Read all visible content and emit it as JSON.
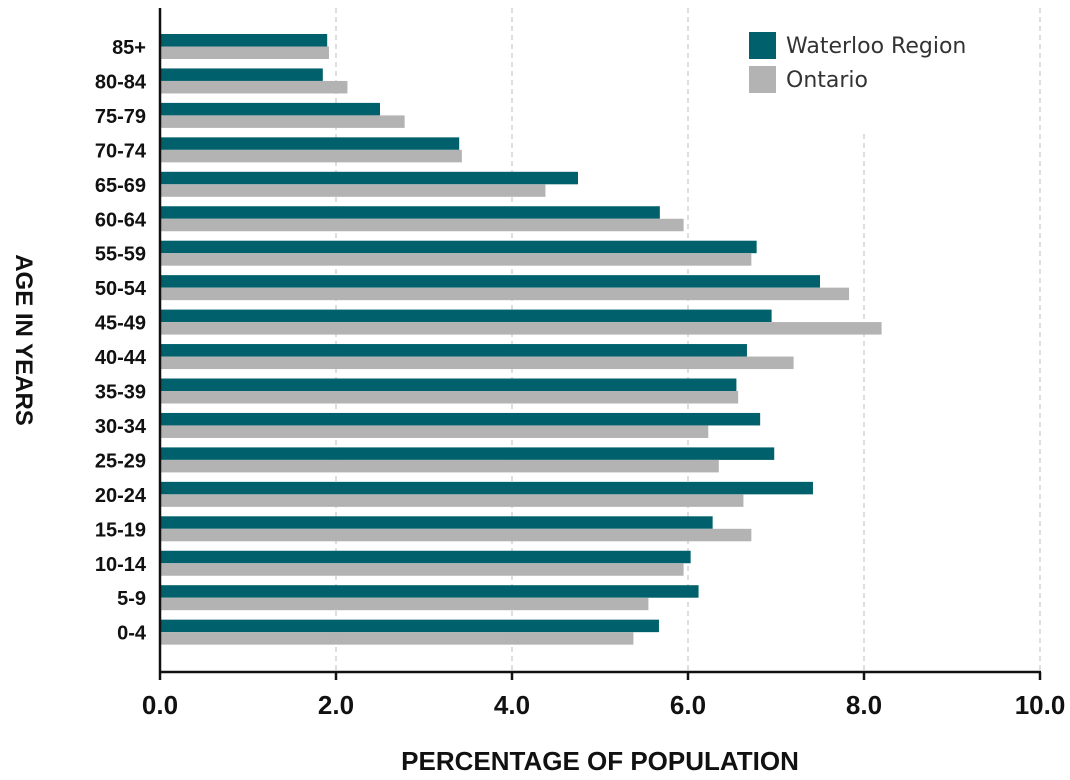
{
  "chart_data": {
    "type": "bar",
    "orientation": "horizontal",
    "xlabel": "PERCENTAGE OF POPULATION",
    "ylabel": "AGE IN YEARS",
    "xlim": [
      0,
      10
    ],
    "x_ticks": [
      "0.0",
      "2.0",
      "4.0",
      "6.0",
      "8.0",
      "10.0"
    ],
    "grid": "vertical dashed",
    "legend_position": "top-right",
    "categories": [
      "85+",
      "80-84",
      "75-79",
      "70-74",
      "65-69",
      "60-64",
      "55-59",
      "50-54",
      "45-49",
      "40-44",
      "35-39",
      "30-34",
      "25-29",
      "20-24",
      "15-19",
      "10-14",
      "5-9",
      "0-4"
    ],
    "series": [
      {
        "name": "Waterloo Region",
        "color": "#00606b",
        "values": [
          1.9,
          1.85,
          2.5,
          3.4,
          4.75,
          5.68,
          6.78,
          7.5,
          6.95,
          6.67,
          6.55,
          6.82,
          6.98,
          7.42,
          6.28,
          6.03,
          6.12,
          5.67
        ]
      },
      {
        "name": "Ontario",
        "color": "#b3b3b3",
        "values": [
          1.92,
          2.13,
          2.78,
          3.43,
          4.38,
          5.95,
          6.72,
          7.83,
          8.2,
          7.2,
          6.57,
          6.23,
          6.35,
          6.63,
          6.72,
          5.95,
          5.55,
          5.38
        ]
      }
    ]
  }
}
